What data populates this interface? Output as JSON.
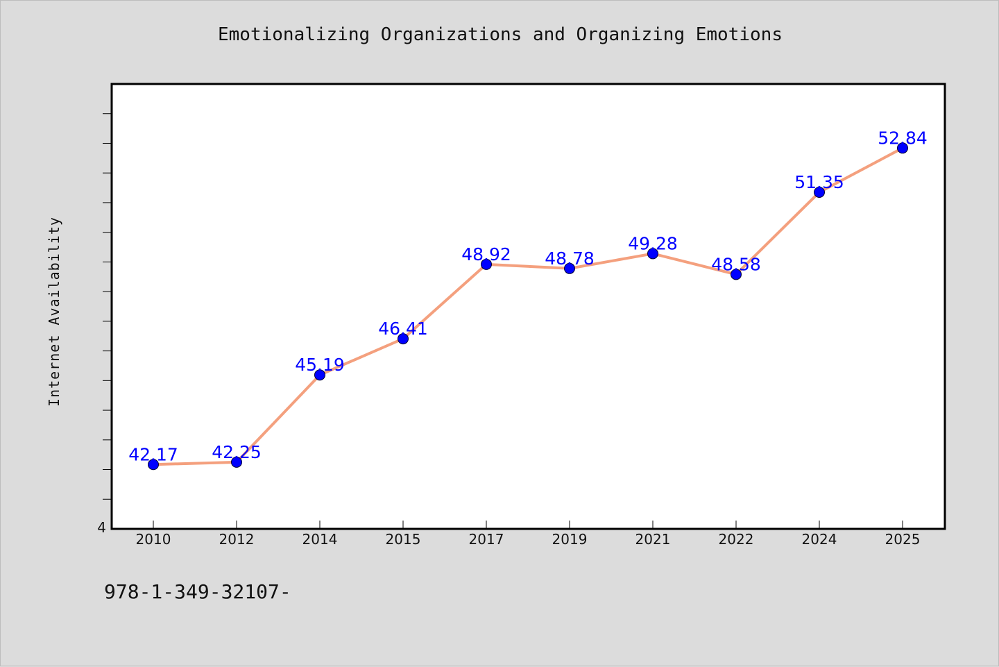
{
  "chart_data": {
    "type": "line",
    "title": "Emotionalizing Organizations and Organizing Emotions",
    "xlabel": "",
    "ylabel": "Internet Availability",
    "categories": [
      "2010",
      "2012",
      "2014",
      "2015",
      "2017",
      "2019",
      "2021",
      "2022",
      "2024",
      "2025"
    ],
    "series": [
      {
        "values": [
          42.17,
          42.25,
          45.19,
          46.41,
          48.92,
          48.78,
          49.28,
          48.58,
          51.35,
          52.84
        ]
      }
    ],
    "ylim": [
      40,
      55
    ],
    "ytick_labels": [
      "4"
    ],
    "grid": false,
    "colors": {
      "line": "#f4a07e",
      "marker": "#0000ff",
      "data_label": "#0000ff",
      "plot_bg": "#ffffff",
      "figure_bg": "#dcdcdc"
    },
    "footer_text": "978-1-349-32107-"
  }
}
